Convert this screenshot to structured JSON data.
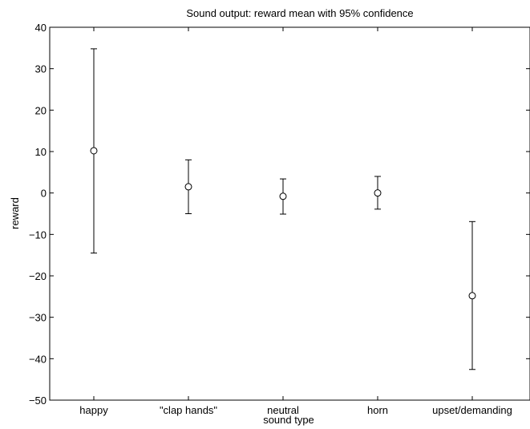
{
  "chart_data": {
    "type": "errorbar",
    "title": "Sound output: reward mean with 95% confidence",
    "xlabel": "sound type",
    "ylabel": "reward",
    "ylim": [
      -50,
      40
    ],
    "yticks": [
      40,
      30,
      20,
      10,
      0,
      -10,
      -20,
      -30,
      -40,
      -50
    ],
    "ytick_labels": [
      "40",
      "30",
      "20",
      "10",
      "0",
      "−10",
      "−20",
      "−30",
      "−40",
      "−50"
    ],
    "categories": [
      "happy",
      "\"clap hands\"",
      "neutral",
      "horn",
      "upset/demanding"
    ],
    "means": [
      10.2,
      1.5,
      -0.8,
      0.0,
      -24.8
    ],
    "lower": [
      -14.5,
      -5.0,
      -5.1,
      -3.9,
      -42.6
    ],
    "upper": [
      34.8,
      8.0,
      3.4,
      4.0,
      -6.9
    ],
    "grid": false,
    "marker": "open-circle",
    "color": "#000000"
  }
}
